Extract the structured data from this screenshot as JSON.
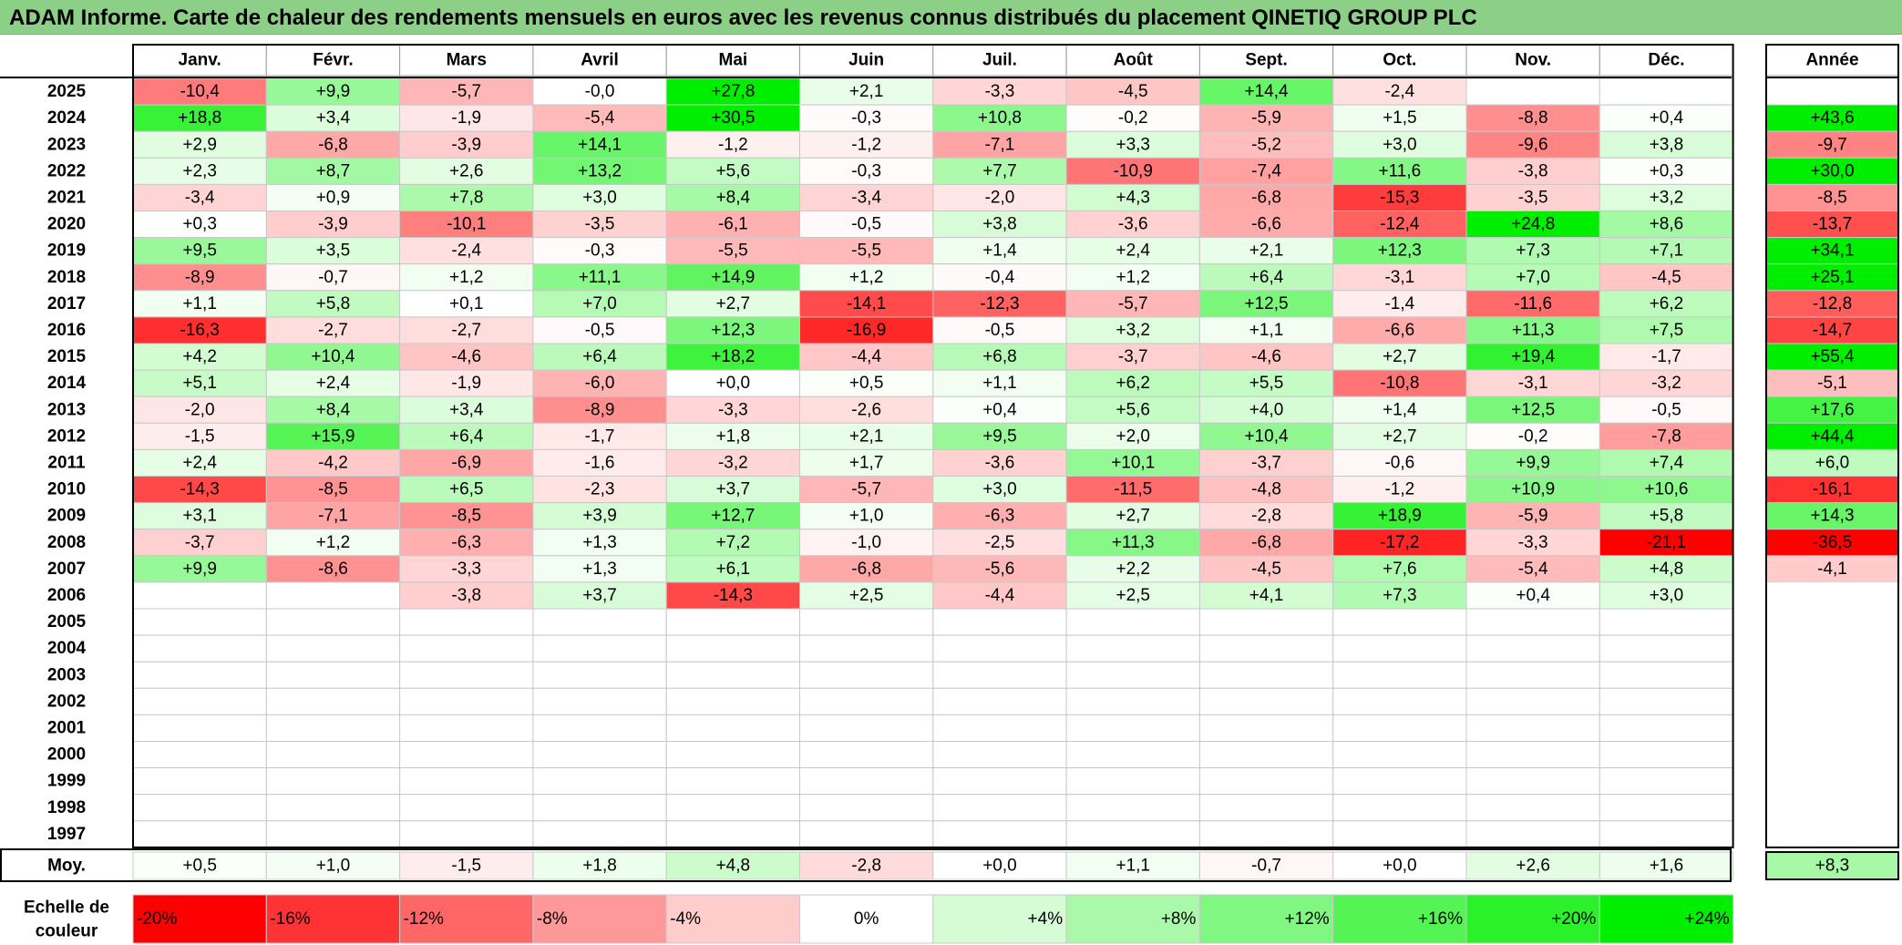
{
  "title": "ADAM Informe. Carte de chaleur des rendements mensuels en euros avec les revenus connus distribués du placement QINETIQ GROUP PLC",
  "chart_data": {
    "type": "heatmap",
    "months": [
      "Janv.",
      "Févr.",
      "Mars",
      "Avril",
      "Mai",
      "Juin",
      "Juil.",
      "Août",
      "Sept.",
      "Oct.",
      "Nov.",
      "Déc."
    ],
    "annual_header": "Année",
    "rows": [
      {
        "year": "2025",
        "values": [
          "-10,4",
          "+9,9",
          "-5,7",
          "-0,0",
          "+27,8",
          "+2,1",
          "-3,3",
          "-4,5",
          "+14,4",
          "-2,4",
          "",
          ""
        ],
        "annual": ""
      },
      {
        "year": "2024",
        "values": [
          "+18,8",
          "+3,4",
          "-1,9",
          "-5,4",
          "+30,5",
          "-0,3",
          "+10,8",
          "-0,2",
          "-5,9",
          "+1,5",
          "-8,8",
          "+0,4"
        ],
        "annual": "+43,6"
      },
      {
        "year": "2023",
        "values": [
          "+2,9",
          "-6,8",
          "-3,9",
          "+14,1",
          "-1,2",
          "-1,2",
          "-7,1",
          "+3,3",
          "-5,2",
          "+3,0",
          "-9,6",
          "+3,8"
        ],
        "annual": "-9,7"
      },
      {
        "year": "2022",
        "values": [
          "+2,3",
          "+8,7",
          "+2,6",
          "+13,2",
          "+5,6",
          "-0,3",
          "+7,7",
          "-10,9",
          "-7,4",
          "+11,6",
          "-3,8",
          "+0,3"
        ],
        "annual": "+30,0"
      },
      {
        "year": "2021",
        "values": [
          "-3,4",
          "+0,9",
          "+7,8",
          "+3,0",
          "+8,4",
          "-3,4",
          "-2,0",
          "+4,3",
          "-6,8",
          "-15,3",
          "-3,5",
          "+3,2"
        ],
        "annual": "-8,5"
      },
      {
        "year": "2020",
        "values": [
          "+0,3",
          "-3,9",
          "-10,1",
          "-3,5",
          "-6,1",
          "-0,5",
          "+3,8",
          "-3,6",
          "-6,6",
          "-12,4",
          "+24,8",
          "+8,6"
        ],
        "annual": "-13,7"
      },
      {
        "year": "2019",
        "values": [
          "+9,5",
          "+3,5",
          "-2,4",
          "-0,3",
          "-5,5",
          "-5,5",
          "+1,4",
          "+2,4",
          "+2,1",
          "+12,3",
          "+7,3",
          "+7,1"
        ],
        "annual": "+34,1"
      },
      {
        "year": "2018",
        "values": [
          "-8,9",
          "-0,7",
          "+1,2",
          "+11,1",
          "+14,9",
          "+1,2",
          "-0,4",
          "+1,2",
          "+6,4",
          "-3,1",
          "+7,0",
          "-4,5"
        ],
        "annual": "+25,1"
      },
      {
        "year": "2017",
        "values": [
          "+1,1",
          "+5,8",
          "+0,1",
          "+7,0",
          "+2,7",
          "-14,1",
          "-12,3",
          "-5,7",
          "+12,5",
          "-1,4",
          "-11,6",
          "+6,2"
        ],
        "annual": "-12,8"
      },
      {
        "year": "2016",
        "values": [
          "-16,3",
          "-2,7",
          "-2,7",
          "-0,5",
          "+12,3",
          "-16,9",
          "-0,5",
          "+3,2",
          "+1,1",
          "-6,6",
          "+11,3",
          "+7,5"
        ],
        "annual": "-14,7"
      },
      {
        "year": "2015",
        "values": [
          "+4,2",
          "+10,4",
          "-4,6",
          "+6,4",
          "+18,2",
          "-4,4",
          "+6,8",
          "-3,7",
          "-4,6",
          "+2,7",
          "+19,4",
          "-1,7"
        ],
        "annual": "+55,4"
      },
      {
        "year": "2014",
        "values": [
          "+5,1",
          "+2,4",
          "-1,9",
          "-6,0",
          "+0,0",
          "+0,5",
          "+1,1",
          "+6,2",
          "+5,5",
          "-10,8",
          "-3,1",
          "-3,2"
        ],
        "annual": "-5,1"
      },
      {
        "year": "2013",
        "values": [
          "-2,0",
          "+8,4",
          "+3,4",
          "-8,9",
          "-3,3",
          "-2,6",
          "+0,4",
          "+5,6",
          "+4,0",
          "+1,4",
          "+12,5",
          "-0,5"
        ],
        "annual": "+17,6"
      },
      {
        "year": "2012",
        "values": [
          "-1,5",
          "+15,9",
          "+6,4",
          "-1,7",
          "+1,8",
          "+2,1",
          "+9,5",
          "+2,0",
          "+10,4",
          "+2,7",
          "-0,2",
          "-7,8"
        ],
        "annual": "+44,4"
      },
      {
        "year": "2011",
        "values": [
          "+2,4",
          "-4,2",
          "-6,9",
          "-1,6",
          "-3,2",
          "+1,7",
          "-3,6",
          "+10,1",
          "-3,7",
          "-0,6",
          "+9,9",
          "+7,4"
        ],
        "annual": "+6,0"
      },
      {
        "year": "2010",
        "values": [
          "-14,3",
          "-8,5",
          "+6,5",
          "-2,3",
          "+3,7",
          "-5,7",
          "+3,0",
          "-11,5",
          "-4,8",
          "-1,2",
          "+10,9",
          "+10,6"
        ],
        "annual": "-16,1"
      },
      {
        "year": "2009",
        "values": [
          "+3,1",
          "-7,1",
          "-8,5",
          "+3,9",
          "+12,7",
          "+1,0",
          "-6,3",
          "+2,7",
          "-2,8",
          "+18,9",
          "-5,9",
          "+5,8"
        ],
        "annual": "+14,3"
      },
      {
        "year": "2008",
        "values": [
          "-3,7",
          "+1,2",
          "-6,3",
          "+1,3",
          "+7,2",
          "-1,0",
          "-2,5",
          "+11,3",
          "-6,8",
          "-17,2",
          "-3,3",
          "-21,1"
        ],
        "annual": "-36,5"
      },
      {
        "year": "2007",
        "values": [
          "+9,9",
          "-8,6",
          "-3,3",
          "+1,3",
          "+6,1",
          "-6,8",
          "-5,6",
          "+2,2",
          "-4,5",
          "+7,6",
          "-5,4",
          "+4,8"
        ],
        "annual": "-4,1"
      },
      {
        "year": "2006",
        "values": [
          "",
          "",
          "-3,8",
          "+3,7",
          "-14,3",
          "+2,5",
          "-4,4",
          "+2,5",
          "+4,1",
          "+7,3",
          "+0,4",
          "+3,0"
        ],
        "annual": ""
      },
      {
        "year": "2005",
        "values": [
          "",
          "",
          "",
          "",
          "",
          "",
          "",
          "",
          "",
          "",
          "",
          ""
        ],
        "annual": ""
      },
      {
        "year": "2004",
        "values": [
          "",
          "",
          "",
          "",
          "",
          "",
          "",
          "",
          "",
          "",
          "",
          ""
        ],
        "annual": ""
      },
      {
        "year": "2003",
        "values": [
          "",
          "",
          "",
          "",
          "",
          "",
          "",
          "",
          "",
          "",
          "",
          ""
        ],
        "annual": ""
      },
      {
        "year": "2002",
        "values": [
          "",
          "",
          "",
          "",
          "",
          "",
          "",
          "",
          "",
          "",
          "",
          ""
        ],
        "annual": ""
      },
      {
        "year": "2001",
        "values": [
          "",
          "",
          "",
          "",
          "",
          "",
          "",
          "",
          "",
          "",
          "",
          ""
        ],
        "annual": ""
      },
      {
        "year": "2000",
        "values": [
          "",
          "",
          "",
          "",
          "",
          "",
          "",
          "",
          "",
          "",
          "",
          ""
        ],
        "annual": ""
      },
      {
        "year": "1999",
        "values": [
          "",
          "",
          "",
          "",
          "",
          "",
          "",
          "",
          "",
          "",
          "",
          ""
        ],
        "annual": ""
      },
      {
        "year": "1998",
        "values": [
          "",
          "",
          "",
          "",
          "",
          "",
          "",
          "",
          "",
          "",
          "",
          ""
        ],
        "annual": ""
      },
      {
        "year": "1997",
        "values": [
          "",
          "",
          "",
          "",
          "",
          "",
          "",
          "",
          "",
          "",
          "",
          ""
        ],
        "annual": ""
      }
    ],
    "average": {
      "label": "Moy.",
      "values": [
        "+0,5",
        "+1,0",
        "-1,5",
        "+1,8",
        "+4,8",
        "-2,8",
        "+0,0",
        "+1,1",
        "-0,7",
        "+0,0",
        "+2,6",
        "+1,6"
      ],
      "annual": "+8,3"
    },
    "scale": {
      "label_line1": "Echelle de",
      "label_line2": "couleur",
      "items": [
        {
          "label": "-20%",
          "value": -20
        },
        {
          "label": "-16%",
          "value": -16
        },
        {
          "label": "-12%",
          "value": -12
        },
        {
          "label": "-8%",
          "value": -8
        },
        {
          "label": "-4%",
          "value": -4
        },
        {
          "label": "0%",
          "value": 0
        },
        {
          "label": "+4%",
          "value": 4
        },
        {
          "label": "+8%",
          "value": 8
        },
        {
          "label": "+12%",
          "value": 12
        },
        {
          "label": "+16%",
          "value": 16
        },
        {
          "label": "+20%",
          "value": 20
        },
        {
          "label": "+24%",
          "value": 24
        }
      ]
    },
    "colors": {
      "negative_max": "#ff0000",
      "neutral": "#ffffff",
      "positive_max": "#00ee00",
      "title_bar": "#8ccf86"
    }
  }
}
